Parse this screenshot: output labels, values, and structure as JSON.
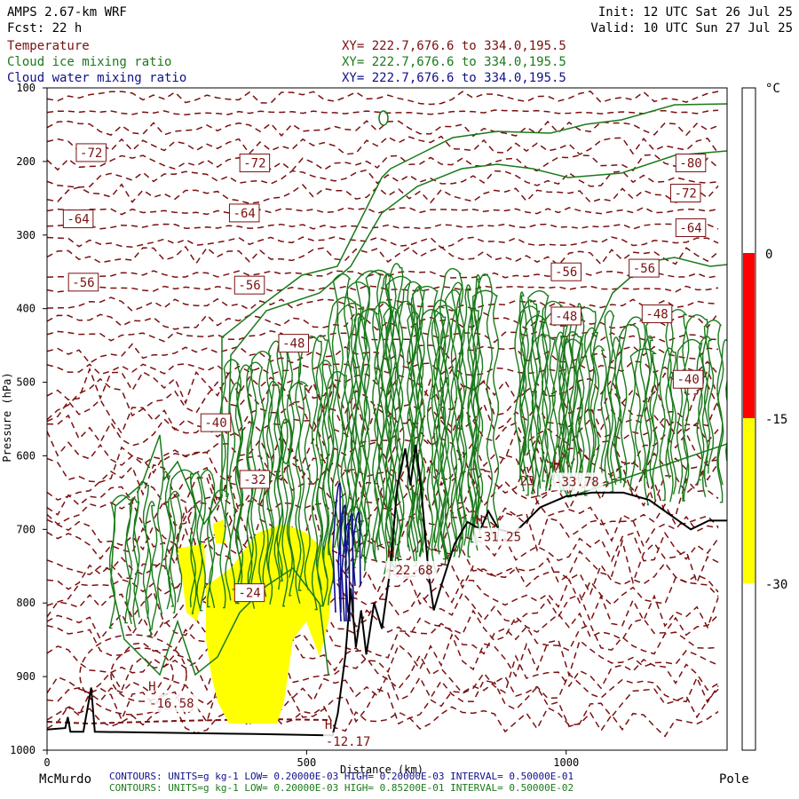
{
  "header": {
    "model": "AMPS 2.67-km WRF",
    "forecast": "Fcst:   22 h",
    "init": "Init: 12 UTC Sat 26 Jul 25",
    "valid": "Valid: 10 UTC Sun 27 Jul 25"
  },
  "legend": [
    {
      "name": "Temperature",
      "xy": "XY= 222.7,676.6 to 334.0,195.5",
      "color": "#7a1010"
    },
    {
      "name": "Cloud ice mixing ratio",
      "xy": "XY= 222.7,676.6 to 334.0,195.5",
      "color": "#1a7a1a"
    },
    {
      "name": "Cloud water mixing ratio",
      "xy": "XY= 222.7,676.6 to 334.0,195.5",
      "color": "#10108a"
    }
  ],
  "footer": {
    "left_end": "McMurdo",
    "right_end": "Pole",
    "line1": "CONTOURS: UNITS=g kg-1 LOW= 0.20000E-03 HIGH= 0.20000E-03 INTERVAL= 0.50000E-01",
    "line2": "CONTOURS: UNITS=g kg-1 LOW= 0.20000E-03 HIGH= 0.85200E-01 INTERVAL= 0.50000E-02"
  },
  "chart_data": {
    "type": "line",
    "xlabel": "Distance (km)",
    "ylabel": "Pressure (hPa)",
    "xlim": [
      0,
      1310
    ],
    "ylim": [
      1000,
      100
    ],
    "x_ticks": [
      "0",
      "500",
      "1000"
    ],
    "x_tick_values": [
      0,
      500,
      1000
    ],
    "y_ticks": [
      "100",
      "200",
      "300",
      "400",
      "500",
      "600",
      "700",
      "800",
      "900",
      "1000"
    ],
    "y_tick_values": [
      100,
      200,
      300,
      400,
      500,
      600,
      700,
      800,
      900,
      1000
    ],
    "colorbar": {
      "unit": "°C",
      "levels": [
        "0",
        "-15",
        "-30"
      ],
      "bands": [
        {
          "from": 0,
          "to": -15,
          "color": "#ff0000"
        },
        {
          "from": -15,
          "to": -30,
          "color": "#ffff00"
        }
      ]
    },
    "temperature_labels": [
      {
        "text": "-72",
        "x": 85,
        "p": 188
      },
      {
        "text": "-72",
        "x": 400,
        "p": 202
      },
      {
        "text": "-64",
        "x": 60,
        "p": 278
      },
      {
        "text": "-64",
        "x": 380,
        "p": 270
      },
      {
        "text": "-56",
        "x": 70,
        "p": 364
      },
      {
        "text": "-56",
        "x": 390,
        "p": 368
      },
      {
        "text": "-48",
        "x": 475,
        "p": 447
      },
      {
        "text": "-40",
        "x": 325,
        "p": 555
      },
      {
        "text": "-32",
        "x": 400,
        "p": 632
      },
      {
        "text": "-24",
        "x": 390,
        "p": 786
      },
      {
        "text": "-80",
        "x": 1240,
        "p": 202
      },
      {
        "text": "-72",
        "x": 1230,
        "p": 243
      },
      {
        "text": "-64",
        "x": 1240,
        "p": 290
      },
      {
        "text": "-56",
        "x": 1000,
        "p": 350
      },
      {
        "text": "-56",
        "x": 1150,
        "p": 345
      },
      {
        "text": "-48",
        "x": 1000,
        "p": 410
      },
      {
        "text": "-48",
        "x": 1175,
        "p": 407
      },
      {
        "text": "-40",
        "x": 1235,
        "p": 496
      }
    ],
    "extrema": [
      {
        "type": "H",
        "value": "-16.58",
        "x": 240,
        "p": 936
      },
      {
        "type": "H",
        "value": "-12.17",
        "x": 580,
        "p": 988
      },
      {
        "type": "H",
        "value": "-22.68",
        "x": 700,
        "p": 755
      },
      {
        "type": "H",
        "value": "-31.25",
        "x": 870,
        "p": 710
      },
      {
        "type": "H",
        "value": "-33.78",
        "x": 1020,
        "p": 635
      }
    ],
    "text_fragments": [
      {
        "text": "23",
        "x": 925,
        "p": 640
      }
    ],
    "terrain_surface": [
      [
        0,
        972
      ],
      [
        35,
        970
      ],
      [
        40,
        955
      ],
      [
        45,
        975
      ],
      [
        70,
        975
      ],
      [
        85,
        915
      ],
      [
        92,
        975
      ],
      [
        200,
        976
      ],
      [
        400,
        978
      ],
      [
        550,
        980
      ],
      [
        560,
        950
      ],
      [
        575,
        870
      ],
      [
        585,
        780
      ],
      [
        595,
        860
      ],
      [
        605,
        810
      ],
      [
        615,
        870
      ],
      [
        630,
        800
      ],
      [
        645,
        835
      ],
      [
        660,
        760
      ],
      [
        675,
        640
      ],
      [
        690,
        590
      ],
      [
        700,
        640
      ],
      [
        710,
        585
      ],
      [
        720,
        640
      ],
      [
        735,
        760
      ],
      [
        745,
        810
      ],
      [
        760,
        775
      ],
      [
        785,
        720
      ],
      [
        810,
        690
      ],
      [
        835,
        700
      ],
      [
        850,
        675
      ],
      [
        870,
        700
      ],
      [
        900,
        705
      ],
      [
        950,
        670
      ],
      [
        1000,
        655
      ],
      [
        1050,
        650
      ],
      [
        1110,
        650
      ],
      [
        1160,
        660
      ],
      [
        1200,
        680
      ],
      [
        1240,
        700
      ],
      [
        1275,
        688
      ],
      [
        1310,
        688
      ]
    ]
  }
}
